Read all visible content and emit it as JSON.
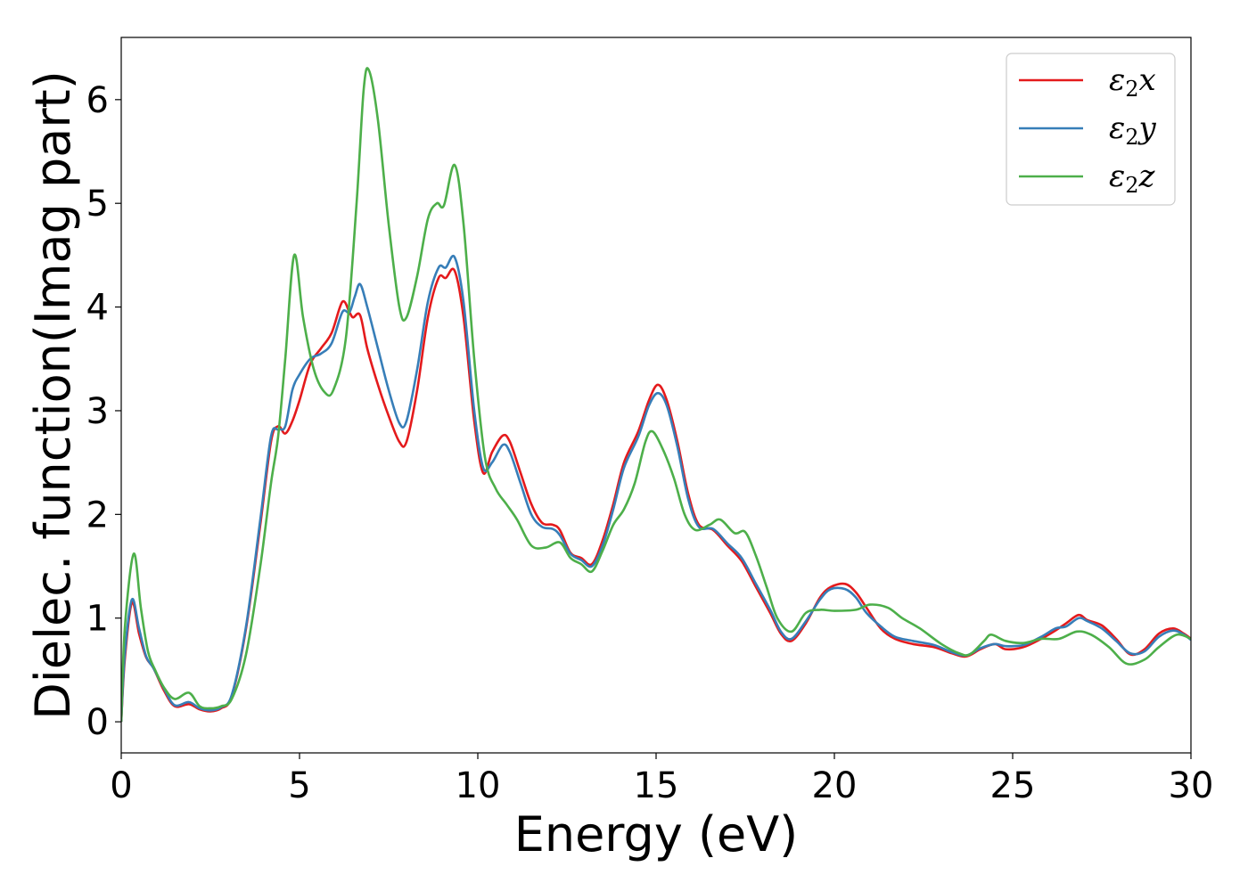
{
  "chart_data": {
    "type": "line",
    "xlabel": "Energy (eV)",
    "ylabel": "Dielec. function(Imag part)",
    "xlim": [
      0,
      30
    ],
    "ylim": [
      -0.3,
      6.6
    ],
    "xticks": [
      0,
      5,
      10,
      15,
      20,
      25,
      30
    ],
    "yticks": [
      0,
      1,
      2,
      3,
      4,
      5,
      6
    ],
    "grid": false,
    "legend_position": "top-right",
    "series": [
      {
        "name": "ε2x",
        "legend": {
          "symbol": "ε",
          "sub": "2",
          "var": "x"
        },
        "color": "#e41a1c",
        "points": [
          [
            0,
            0
          ],
          [
            0.1,
            0.6
          ],
          [
            0.3,
            1.15
          ],
          [
            0.5,
            0.85
          ],
          [
            0.7,
            0.62
          ],
          [
            0.9,
            0.52
          ],
          [
            1.2,
            0.3
          ],
          [
            1.5,
            0.15
          ],
          [
            1.9,
            0.17
          ],
          [
            2.2,
            0.12
          ],
          [
            2.5,
            0.1
          ],
          [
            2.8,
            0.13
          ],
          [
            3.1,
            0.25
          ],
          [
            3.5,
            0.9
          ],
          [
            3.9,
            1.9
          ],
          [
            4.2,
            2.7
          ],
          [
            4.4,
            2.85
          ],
          [
            4.6,
            2.78
          ],
          [
            4.8,
            2.9
          ],
          [
            5.0,
            3.1
          ],
          [
            5.3,
            3.45
          ],
          [
            5.6,
            3.6
          ],
          [
            5.9,
            3.75
          ],
          [
            6.2,
            4.05
          ],
          [
            6.4,
            3.95
          ],
          [
            6.5,
            3.9
          ],
          [
            6.7,
            3.92
          ],
          [
            6.9,
            3.6
          ],
          [
            7.2,
            3.25
          ],
          [
            7.5,
            2.95
          ],
          [
            7.8,
            2.7
          ],
          [
            8.0,
            2.7
          ],
          [
            8.3,
            3.2
          ],
          [
            8.6,
            3.9
          ],
          [
            8.9,
            4.28
          ],
          [
            9.1,
            4.28
          ],
          [
            9.35,
            4.35
          ],
          [
            9.6,
            3.9
          ],
          [
            9.9,
            2.9
          ],
          [
            10.15,
            2.4
          ],
          [
            10.4,
            2.6
          ],
          [
            10.7,
            2.76
          ],
          [
            10.9,
            2.7
          ],
          [
            11.2,
            2.4
          ],
          [
            11.5,
            2.1
          ],
          [
            11.8,
            1.92
          ],
          [
            12.1,
            1.9
          ],
          [
            12.3,
            1.85
          ],
          [
            12.6,
            1.63
          ],
          [
            12.9,
            1.58
          ],
          [
            13.2,
            1.52
          ],
          [
            13.5,
            1.75
          ],
          [
            13.8,
            2.1
          ],
          [
            14.1,
            2.5
          ],
          [
            14.5,
            2.8
          ],
          [
            14.8,
            3.1
          ],
          [
            15.05,
            3.25
          ],
          [
            15.3,
            3.1
          ],
          [
            15.6,
            2.7
          ],
          [
            15.9,
            2.2
          ],
          [
            16.2,
            1.9
          ],
          [
            16.6,
            1.85
          ],
          [
            17.0,
            1.7
          ],
          [
            17.4,
            1.55
          ],
          [
            17.8,
            1.3
          ],
          [
            18.2,
            1.05
          ],
          [
            18.5,
            0.85
          ],
          [
            18.8,
            0.78
          ],
          [
            19.2,
            0.95
          ],
          [
            19.6,
            1.2
          ],
          [
            19.9,
            1.3
          ],
          [
            20.3,
            1.33
          ],
          [
            20.6,
            1.25
          ],
          [
            20.9,
            1.1
          ],
          [
            21.3,
            0.9
          ],
          [
            21.7,
            0.8
          ],
          [
            22.2,
            0.75
          ],
          [
            22.8,
            0.72
          ],
          [
            23.3,
            0.66
          ],
          [
            23.7,
            0.63
          ],
          [
            24.1,
            0.7
          ],
          [
            24.5,
            0.75
          ],
          [
            24.8,
            0.7
          ],
          [
            25.3,
            0.72
          ],
          [
            25.8,
            0.8
          ],
          [
            26.2,
            0.88
          ],
          [
            26.5,
            0.95
          ],
          [
            26.85,
            1.03
          ],
          [
            27.1,
            0.98
          ],
          [
            27.5,
            0.93
          ],
          [
            27.9,
            0.8
          ],
          [
            28.3,
            0.65
          ],
          [
            28.7,
            0.7
          ],
          [
            29.1,
            0.85
          ],
          [
            29.5,
            0.9
          ],
          [
            29.8,
            0.85
          ],
          [
            30,
            0.8
          ]
        ]
      },
      {
        "name": "ε2y",
        "legend": {
          "symbol": "ε",
          "sub": "2",
          "var": "y"
        },
        "color": "#377eb8",
        "points": [
          [
            0,
            0
          ],
          [
            0.1,
            0.65
          ],
          [
            0.3,
            1.18
          ],
          [
            0.5,
            0.9
          ],
          [
            0.7,
            0.63
          ],
          [
            0.9,
            0.52
          ],
          [
            1.2,
            0.32
          ],
          [
            1.5,
            0.16
          ],
          [
            1.9,
            0.19
          ],
          [
            2.2,
            0.13
          ],
          [
            2.5,
            0.11
          ],
          [
            2.8,
            0.14
          ],
          [
            3.1,
            0.26
          ],
          [
            3.5,
            0.92
          ],
          [
            3.9,
            1.95
          ],
          [
            4.2,
            2.75
          ],
          [
            4.4,
            2.82
          ],
          [
            4.6,
            2.85
          ],
          [
            4.8,
            3.2
          ],
          [
            5.0,
            3.35
          ],
          [
            5.3,
            3.5
          ],
          [
            5.6,
            3.55
          ],
          [
            5.9,
            3.65
          ],
          [
            6.2,
            3.95
          ],
          [
            6.4,
            3.95
          ],
          [
            6.55,
            4.1
          ],
          [
            6.7,
            4.22
          ],
          [
            6.9,
            4.0
          ],
          [
            7.2,
            3.6
          ],
          [
            7.5,
            3.2
          ],
          [
            7.8,
            2.88
          ],
          [
            8.0,
            2.9
          ],
          [
            8.3,
            3.4
          ],
          [
            8.6,
            4.05
          ],
          [
            8.9,
            4.38
          ],
          [
            9.1,
            4.38
          ],
          [
            9.35,
            4.48
          ],
          [
            9.6,
            4.05
          ],
          [
            9.9,
            3.0
          ],
          [
            10.15,
            2.45
          ],
          [
            10.4,
            2.5
          ],
          [
            10.7,
            2.67
          ],
          [
            10.9,
            2.6
          ],
          [
            11.2,
            2.3
          ],
          [
            11.5,
            2.0
          ],
          [
            11.8,
            1.88
          ],
          [
            12.1,
            1.86
          ],
          [
            12.3,
            1.8
          ],
          [
            12.6,
            1.62
          ],
          [
            12.9,
            1.56
          ],
          [
            13.2,
            1.5
          ],
          [
            13.5,
            1.7
          ],
          [
            13.8,
            2.05
          ],
          [
            14.1,
            2.45
          ],
          [
            14.5,
            2.75
          ],
          [
            14.8,
            3.05
          ],
          [
            15.05,
            3.17
          ],
          [
            15.3,
            3.05
          ],
          [
            15.6,
            2.65
          ],
          [
            15.9,
            2.15
          ],
          [
            16.2,
            1.88
          ],
          [
            16.6,
            1.86
          ],
          [
            17.0,
            1.72
          ],
          [
            17.4,
            1.58
          ],
          [
            17.8,
            1.33
          ],
          [
            18.2,
            1.08
          ],
          [
            18.5,
            0.87
          ],
          [
            18.8,
            0.8
          ],
          [
            19.2,
            0.97
          ],
          [
            19.6,
            1.18
          ],
          [
            19.9,
            1.28
          ],
          [
            20.3,
            1.28
          ],
          [
            20.6,
            1.2
          ],
          [
            20.9,
            1.05
          ],
          [
            21.3,
            0.92
          ],
          [
            21.7,
            0.82
          ],
          [
            22.2,
            0.78
          ],
          [
            22.8,
            0.74
          ],
          [
            23.3,
            0.67
          ],
          [
            23.7,
            0.64
          ],
          [
            24.1,
            0.71
          ],
          [
            24.5,
            0.75
          ],
          [
            24.8,
            0.73
          ],
          [
            25.3,
            0.74
          ],
          [
            25.8,
            0.82
          ],
          [
            26.2,
            0.9
          ],
          [
            26.5,
            0.92
          ],
          [
            26.85,
            1.0
          ],
          [
            27.1,
            0.97
          ],
          [
            27.5,
            0.9
          ],
          [
            27.9,
            0.78
          ],
          [
            28.3,
            0.66
          ],
          [
            28.7,
            0.68
          ],
          [
            29.1,
            0.82
          ],
          [
            29.5,
            0.88
          ],
          [
            29.8,
            0.84
          ],
          [
            30,
            0.79
          ]
        ]
      },
      {
        "name": "ε2z",
        "legend": {
          "symbol": "ε",
          "sub": "2",
          "var": "z"
        },
        "color": "#4daf4a",
        "points": [
          [
            0,
            0
          ],
          [
            0.1,
            0.9
          ],
          [
            0.35,
            1.62
          ],
          [
            0.55,
            1.1
          ],
          [
            0.75,
            0.68
          ],
          [
            0.95,
            0.5
          ],
          [
            1.2,
            0.33
          ],
          [
            1.5,
            0.22
          ],
          [
            1.9,
            0.28
          ],
          [
            2.2,
            0.15
          ],
          [
            2.5,
            0.13
          ],
          [
            2.8,
            0.15
          ],
          [
            3.1,
            0.22
          ],
          [
            3.5,
            0.65
          ],
          [
            3.9,
            1.5
          ],
          [
            4.2,
            2.3
          ],
          [
            4.4,
            2.75
          ],
          [
            4.6,
            3.5
          ],
          [
            4.85,
            4.5
          ],
          [
            5.1,
            3.9
          ],
          [
            5.4,
            3.4
          ],
          [
            5.7,
            3.18
          ],
          [
            5.95,
            3.2
          ],
          [
            6.3,
            3.7
          ],
          [
            6.6,
            5.0
          ],
          [
            6.8,
            6.1
          ],
          [
            6.95,
            6.28
          ],
          [
            7.2,
            5.8
          ],
          [
            7.5,
            4.8
          ],
          [
            7.8,
            4.0
          ],
          [
            8.0,
            3.9
          ],
          [
            8.3,
            4.3
          ],
          [
            8.6,
            4.85
          ],
          [
            8.85,
            5.0
          ],
          [
            9.05,
            4.98
          ],
          [
            9.35,
            5.37
          ],
          [
            9.6,
            4.8
          ],
          [
            9.9,
            3.5
          ],
          [
            10.2,
            2.55
          ],
          [
            10.5,
            2.25
          ],
          [
            10.8,
            2.1
          ],
          [
            11.1,
            1.95
          ],
          [
            11.5,
            1.7
          ],
          [
            11.9,
            1.68
          ],
          [
            12.3,
            1.73
          ],
          [
            12.6,
            1.58
          ],
          [
            12.9,
            1.52
          ],
          [
            13.2,
            1.45
          ],
          [
            13.5,
            1.65
          ],
          [
            13.8,
            1.9
          ],
          [
            14.1,
            2.05
          ],
          [
            14.4,
            2.3
          ],
          [
            14.7,
            2.7
          ],
          [
            14.9,
            2.8
          ],
          [
            15.2,
            2.62
          ],
          [
            15.5,
            2.35
          ],
          [
            15.8,
            2.0
          ],
          [
            16.1,
            1.85
          ],
          [
            16.5,
            1.9
          ],
          [
            16.8,
            1.95
          ],
          [
            17.2,
            1.82
          ],
          [
            17.5,
            1.83
          ],
          [
            17.8,
            1.6
          ],
          [
            18.1,
            1.3
          ],
          [
            18.4,
            1.0
          ],
          [
            18.8,
            0.87
          ],
          [
            19.2,
            1.05
          ],
          [
            19.6,
            1.08
          ],
          [
            20.0,
            1.07
          ],
          [
            20.6,
            1.08
          ],
          [
            21.0,
            1.13
          ],
          [
            21.5,
            1.1
          ],
          [
            21.9,
            1.0
          ],
          [
            22.4,
            0.9
          ],
          [
            23.0,
            0.75
          ],
          [
            23.5,
            0.66
          ],
          [
            23.8,
            0.65
          ],
          [
            24.2,
            0.78
          ],
          [
            24.4,
            0.84
          ],
          [
            24.8,
            0.78
          ],
          [
            25.3,
            0.76
          ],
          [
            25.8,
            0.8
          ],
          [
            26.3,
            0.8
          ],
          [
            26.8,
            0.87
          ],
          [
            27.2,
            0.84
          ],
          [
            27.7,
            0.72
          ],
          [
            28.2,
            0.56
          ],
          [
            28.7,
            0.6
          ],
          [
            29.1,
            0.72
          ],
          [
            29.6,
            0.84
          ],
          [
            30,
            0.8
          ]
        ]
      }
    ]
  }
}
